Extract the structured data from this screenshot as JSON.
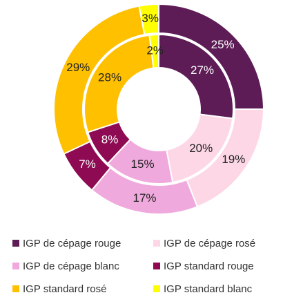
{
  "chart_data": {
    "type": "donut",
    "categories": [
      "IGP de cépage rouge",
      "IGP de cépage rosé",
      "IGP de cépage blanc",
      "IGP standard rouge",
      "IGP standard rosé",
      "IGP standard blanc"
    ],
    "colors": [
      "#5e1c57",
      "#fdd7e6",
      "#f0a9dd",
      "#8e0a52",
      "#ffc000",
      "#ffff00"
    ],
    "label_colors": [
      "#ffffff",
      "#222222",
      "#222222",
      "#ffffff",
      "#222222",
      "#222222"
    ],
    "series": [
      {
        "values": [
          25,
          19,
          17,
          7,
          29,
          3
        ],
        "value_labels": [
          "25%",
          "19%",
          "17%",
          "7%",
          "29%",
          "3%"
        ]
      },
      {
        "values": [
          27,
          20,
          15,
          8,
          28,
          2
        ],
        "value_labels": [
          "27%",
          "20%",
          "15%",
          "8%",
          "28%",
          "2%"
        ]
      }
    ],
    "legend": "bottom"
  }
}
